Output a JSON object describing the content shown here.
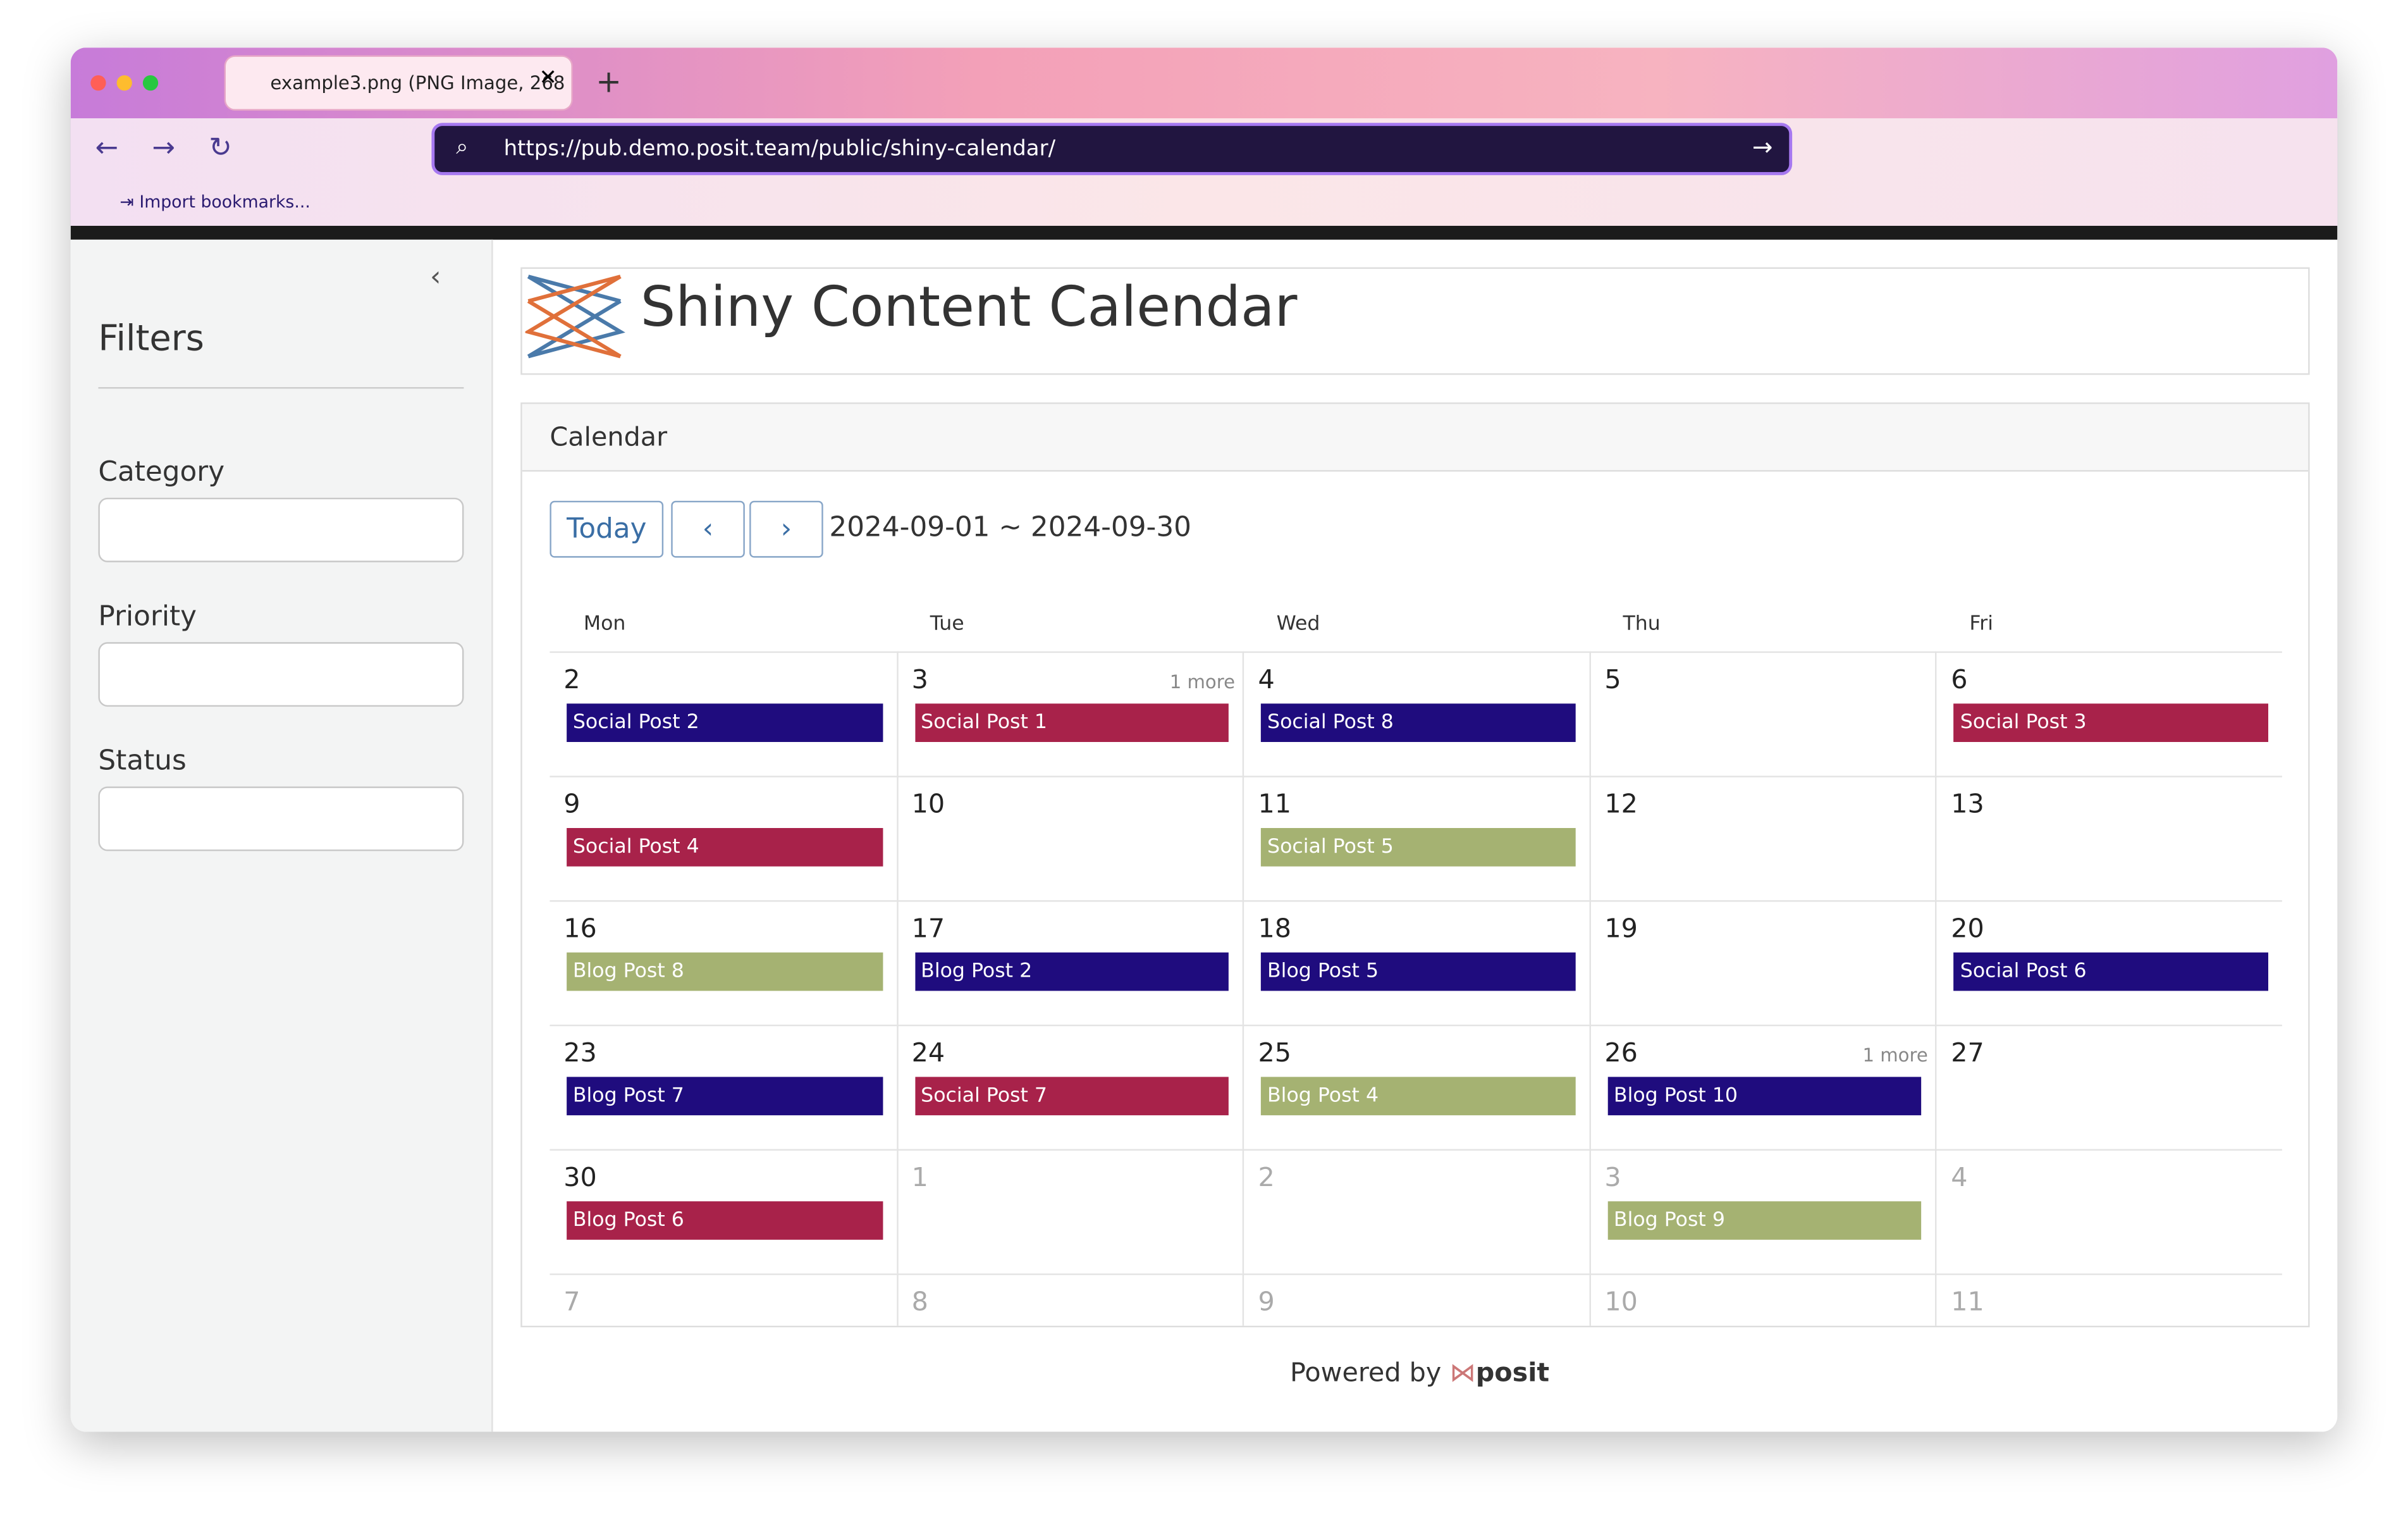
{
  "browser": {
    "tab_title": "example3.png (PNG Image, 268",
    "url": "https://pub.demo.posit.team/public/shiny-calendar/",
    "bookmarks": "Import bookmarks..."
  },
  "sidebar": {
    "title": "Filters",
    "filters": [
      "Category",
      "Priority",
      "Status"
    ]
  },
  "header": {
    "title": "Shiny Content Calendar"
  },
  "calendar": {
    "title": "Calendar",
    "today": "Today",
    "range": "2024-09-01 ~ 2024-09-30",
    "weekdays": [
      "Mon",
      "Tue",
      "Wed",
      "Thu",
      "Fri"
    ],
    "weeks": [
      [
        {
          "day": 2,
          "events": [
            {
              "name": "Social Post 2",
              "color": "#1f0c7e"
            }
          ]
        },
        {
          "day": 3,
          "more": "1 more",
          "events": [
            {
              "name": "Social Post 1",
              "color": "#a8224a"
            }
          ]
        },
        {
          "day": 4,
          "events": [
            {
              "name": "Social Post 8",
              "color": "#1f0c7e"
            }
          ]
        },
        {
          "day": 5,
          "events": []
        },
        {
          "day": 6,
          "events": [
            {
              "name": "Social Post 3",
              "color": "#a8224a"
            }
          ]
        }
      ],
      [
        {
          "day": 9,
          "events": [
            {
              "name": "Social Post 4",
              "color": "#a8224a"
            }
          ]
        },
        {
          "day": 10,
          "events": []
        },
        {
          "day": 11,
          "events": [
            {
              "name": "Social Post 5",
              "color": "#a5b272"
            }
          ]
        },
        {
          "day": 12,
          "events": []
        },
        {
          "day": 13,
          "events": []
        }
      ],
      [
        {
          "day": 16,
          "events": [
            {
              "name": "Blog Post 8",
              "color": "#a5b272"
            }
          ]
        },
        {
          "day": 17,
          "events": [
            {
              "name": "Blog Post 2",
              "color": "#1f0c7e"
            }
          ]
        },
        {
          "day": 18,
          "events": [
            {
              "name": "Blog Post 5",
              "color": "#1f0c7e"
            }
          ]
        },
        {
          "day": 19,
          "events": []
        },
        {
          "day": 20,
          "events": [
            {
              "name": "Social Post 6",
              "color": "#1f0c7e"
            }
          ]
        }
      ],
      [
        {
          "day": 23,
          "events": [
            {
              "name": "Blog Post 7",
              "color": "#1f0c7e"
            }
          ]
        },
        {
          "day": 24,
          "events": [
            {
              "name": "Social Post 7",
              "color": "#a8224a"
            }
          ]
        },
        {
          "day": 25,
          "events": [
            {
              "name": "Blog Post 4",
              "color": "#a5b272"
            }
          ]
        },
        {
          "day": 26,
          "more": "1 more",
          "events": [
            {
              "name": "Blog Post 10",
              "color": "#1f0c7e"
            }
          ]
        },
        {
          "day": 27,
          "events": []
        }
      ],
      [
        {
          "day": 30,
          "events": [
            {
              "name": "Blog Post 6",
              "color": "#a8224a"
            }
          ]
        },
        {
          "day": 1,
          "muted": true,
          "events": []
        },
        {
          "day": 2,
          "muted": true,
          "events": []
        },
        {
          "day": 3,
          "muted": true,
          "events": [
            {
              "name": "Blog Post 9",
              "color": "#a5b272"
            }
          ]
        },
        {
          "day": 4,
          "muted": true,
          "events": []
        }
      ],
      [
        {
          "day": 7,
          "muted": true,
          "events": []
        },
        {
          "day": 8,
          "muted": true,
          "events": []
        },
        {
          "day": 9,
          "muted": true,
          "events": []
        },
        {
          "day": 10,
          "muted": true,
          "events": []
        },
        {
          "day": 11,
          "muted": true,
          "events": []
        }
      ]
    ]
  },
  "footer": {
    "powered": "Powered by",
    "brand": "posit"
  }
}
